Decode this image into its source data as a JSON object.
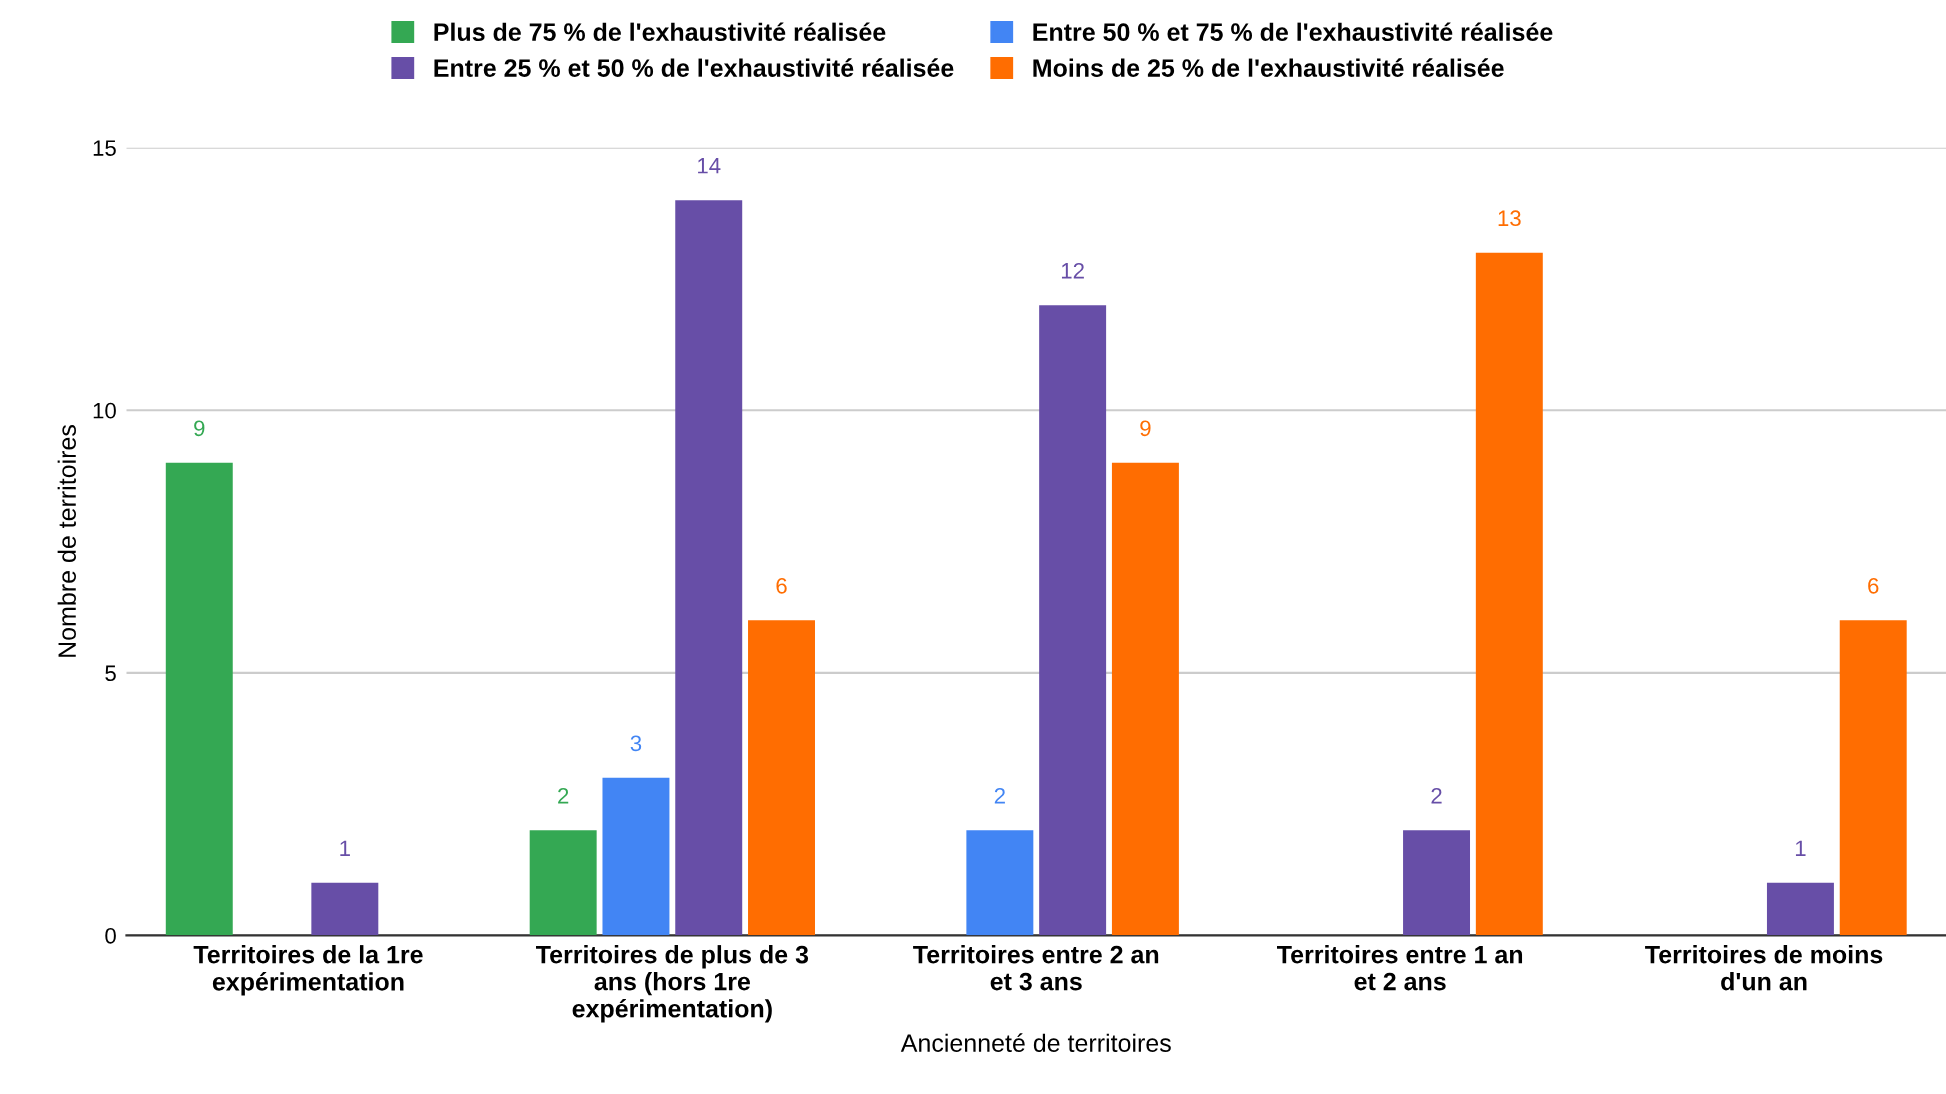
{
  "chart_data": {
    "type": "bar",
    "xlabel": "Ancienneté de territoires",
    "ylabel": "Nombre de territoires",
    "categories": [
      "Territoires de la 1re expérimentation",
      "Territoires de plus de 3 ans (hors 1re expérimentation)",
      "Territoires entre 2 an et 3 ans",
      "Territoires entre 1 an et 2 ans",
      "Territoires de moins d'un an"
    ],
    "series": [
      {
        "name": "Plus de 75 % de l'exhaustivité réalisée",
        "color": "#34a853",
        "values": [
          9,
          2,
          null,
          null,
          null
        ]
      },
      {
        "name": "Entre 50 % et 75 % de l'exhaustivité réalisée",
        "color": "#4285f4",
        "values": [
          null,
          3,
          2,
          null,
          null
        ]
      },
      {
        "name": "Entre 25 % et 50 % de l'exhaustivité réalisée",
        "color": "#674ea7",
        "values": [
          1,
          14,
          12,
          2,
          1
        ]
      },
      {
        "name": "Moins de 25 % de l'exhaustivité réalisée",
        "color": "#ff6d01",
        "values": [
          null,
          6,
          9,
          13,
          6
        ]
      }
    ],
    "ylim": [
      0,
      15
    ],
    "yticks": [
      0,
      5,
      10,
      15
    ],
    "grid": "y",
    "legend": "top",
    "data_labels": true
  }
}
